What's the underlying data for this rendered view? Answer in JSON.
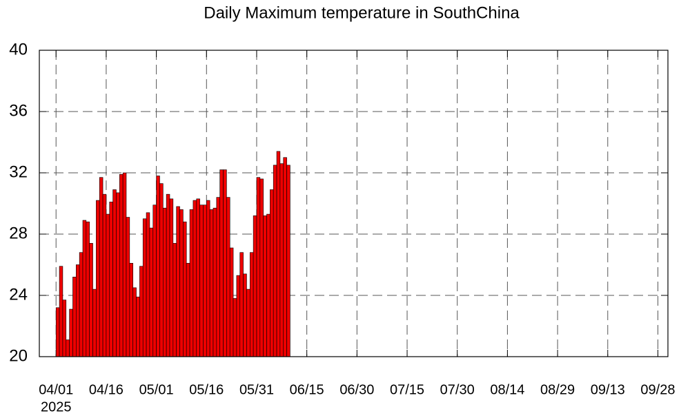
{
  "chart_data": {
    "type": "bar",
    "title": "Daily Maximum temperature in SouthChina",
    "x_year_label": "2025",
    "color": "#ee0000",
    "grid": true,
    "x": [
      "2025-04-01",
      "2025-04-02",
      "2025-04-03",
      "2025-04-04",
      "2025-04-05",
      "2025-04-06",
      "2025-04-07",
      "2025-04-08",
      "2025-04-09",
      "2025-04-10",
      "2025-04-11",
      "2025-04-12",
      "2025-04-13",
      "2025-04-14",
      "2025-04-15",
      "2025-04-16",
      "2025-04-17",
      "2025-04-18",
      "2025-04-19",
      "2025-04-20",
      "2025-04-21",
      "2025-04-22",
      "2025-04-23",
      "2025-04-24",
      "2025-04-25",
      "2025-04-26",
      "2025-04-27",
      "2025-04-28",
      "2025-04-29",
      "2025-04-30",
      "2025-05-01",
      "2025-05-02",
      "2025-05-03",
      "2025-05-04",
      "2025-05-05",
      "2025-05-06",
      "2025-05-07",
      "2025-05-08",
      "2025-05-09",
      "2025-05-10",
      "2025-05-11",
      "2025-05-12",
      "2025-05-13",
      "2025-05-14",
      "2025-05-15",
      "2025-05-16",
      "2025-05-17",
      "2025-05-18",
      "2025-05-19",
      "2025-05-20",
      "2025-05-21",
      "2025-05-22",
      "2025-05-23",
      "2025-05-24",
      "2025-05-25",
      "2025-05-26",
      "2025-05-27",
      "2025-05-28",
      "2025-05-29",
      "2025-05-30",
      "2025-05-31",
      "2025-06-01",
      "2025-06-02",
      "2025-06-03",
      "2025-06-04",
      "2025-06-05",
      "2025-06-06",
      "2025-06-07",
      "2025-06-08",
      "2025-06-09"
    ],
    "values": [
      23.2,
      25.9,
      23.7,
      21.1,
      23.1,
      25.2,
      26.0,
      26.8,
      28.9,
      28.8,
      27.4,
      24.4,
      30.2,
      31.7,
      30.6,
      29.3,
      30.1,
      30.9,
      30.7,
      31.9,
      32.0,
      29.1,
      26.1,
      24.5,
      23.9,
      25.9,
      29.0,
      29.4,
      28.4,
      29.9,
      31.8,
      31.3,
      29.7,
      30.6,
      30.3,
      27.4,
      29.8,
      29.6,
      28.8,
      26.1,
      29.6,
      30.2,
      30.3,
      29.9,
      29.9,
      30.2,
      29.6,
      29.7,
      30.4,
      32.2,
      32.2,
      30.4,
      27.1,
      23.8,
      25.3,
      26.8,
      25.4,
      24.4,
      26.8,
      29.2,
      31.7,
      31.6,
      29.2,
      29.3,
      30.9,
      32.5,
      33.4,
      32.6,
      33.0,
      32.5
    ],
    "xlim": [
      "2025-03-27",
      "2025-10-01"
    ],
    "xticks": [
      {
        "value": "2025-04-01",
        "label": "04/01"
      },
      {
        "value": "2025-04-16",
        "label": "04/16"
      },
      {
        "value": "2025-05-01",
        "label": "05/01"
      },
      {
        "value": "2025-05-16",
        "label": "05/16"
      },
      {
        "value": "2025-05-31",
        "label": "05/31"
      },
      {
        "value": "2025-06-15",
        "label": "06/15"
      },
      {
        "value": "2025-06-30",
        "label": "06/30"
      },
      {
        "value": "2025-07-15",
        "label": "07/15"
      },
      {
        "value": "2025-07-30",
        "label": "07/30"
      },
      {
        "value": "2025-08-14",
        "label": "08/14"
      },
      {
        "value": "2025-08-29",
        "label": "08/29"
      },
      {
        "value": "2025-09-13",
        "label": "09/13"
      },
      {
        "value": "2025-09-28",
        "label": "09/28"
      }
    ],
    "ylim": [
      20,
      40
    ],
    "yticks": [
      20,
      24,
      28,
      32,
      36,
      40
    ]
  }
}
